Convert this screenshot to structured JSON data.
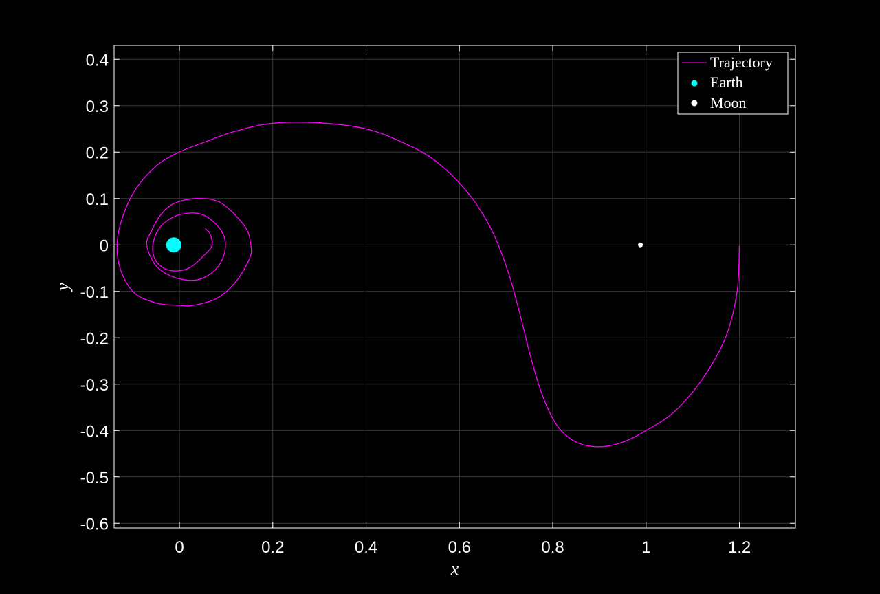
{
  "chart_data": {
    "type": "line",
    "xlabel": "x",
    "ylabel": "y",
    "xlim": [
      -0.14,
      1.32
    ],
    "ylim": [
      -0.61,
      0.43
    ],
    "xticks": [
      "0",
      "0.2",
      "0.4",
      "0.6",
      "0.8",
      "1",
      "1.2"
    ],
    "xtick_values": [
      0,
      0.2,
      0.4,
      0.6,
      0.8,
      1.0,
      1.2
    ],
    "yticks": [
      "0.4",
      "0.3",
      "0.2",
      "0.1",
      "0",
      "-0.1",
      "-0.2",
      "-0.3",
      "-0.4",
      "-0.5",
      "-0.6"
    ],
    "ytick_values": [
      0.4,
      0.3,
      0.2,
      0.1,
      0,
      -0.1,
      -0.2,
      -0.3,
      -0.4,
      -0.5,
      -0.6
    ],
    "grid": true,
    "legend_position": "top-right",
    "series": [
      {
        "name": "Trajectory",
        "kind": "line",
        "color": "#ff00ff",
        "x": [
          1.2,
          1.195,
          1.17,
          1.12,
          1.06,
          1.0,
          0.95,
          0.9,
          0.85,
          0.81,
          0.78,
          0.755,
          0.73,
          0.705,
          0.67,
          0.62,
          0.55,
          0.48,
          0.4,
          0.3,
          0.2,
          0.12,
          0.05,
          0.0,
          -0.05,
          -0.1,
          -0.13,
          -0.13,
          -0.1,
          -0.05,
          0.0,
          0.03,
          0.08,
          0.12,
          0.15,
          0.153,
          0.14,
          0.09,
          0.04,
          -0.01,
          -0.04,
          -0.06,
          -0.07,
          -0.05,
          -0.01,
          0.04,
          0.08,
          0.098,
          0.09,
          0.05,
          0.0,
          -0.04,
          -0.057,
          -0.05,
          -0.02,
          0.02,
          0.055,
          0.07,
          0.065,
          0.055
        ],
        "y": [
          0.0,
          -0.1,
          -0.2,
          -0.29,
          -0.36,
          -0.4,
          -0.425,
          -0.435,
          -0.425,
          -0.39,
          -0.33,
          -0.25,
          -0.15,
          -0.06,
          0.03,
          0.11,
          0.18,
          0.22,
          0.25,
          0.263,
          0.262,
          0.245,
          0.22,
          0.2,
          0.17,
          0.11,
          0.03,
          -0.04,
          -0.1,
          -0.125,
          -0.13,
          -0.13,
          -0.115,
          -0.08,
          -0.03,
          0.0,
          0.04,
          0.09,
          0.1,
          0.09,
          0.065,
          0.03,
          0.0,
          -0.045,
          -0.07,
          -0.075,
          -0.05,
          -0.01,
          0.03,
          0.065,
          0.065,
          0.04,
          0.0,
          -0.035,
          -0.055,
          -0.05,
          -0.02,
          0.0,
          0.025,
          0.035
        ]
      },
      {
        "name": "Earth",
        "kind": "point",
        "color": "#00ffff",
        "x": -0.0121,
        "y": 0
      },
      {
        "name": "Moon",
        "kind": "point",
        "color": "#ffffff",
        "x": 0.9879,
        "y": 0
      }
    ]
  }
}
